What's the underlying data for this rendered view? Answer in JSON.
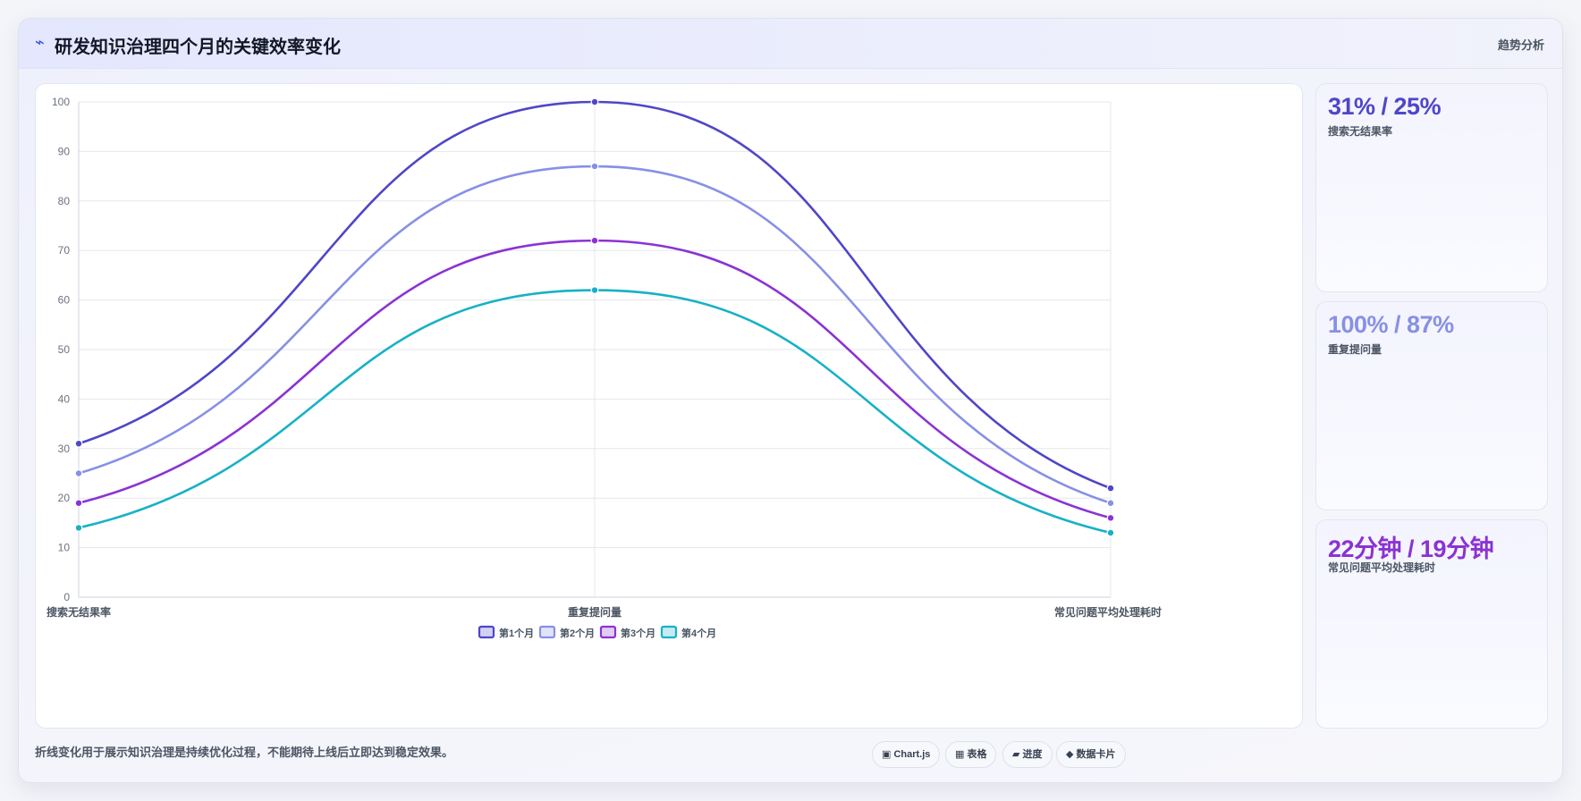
{
  "header": {
    "icon": "lightning-icon",
    "icon_glyph": "⌁",
    "title": "研发知识治理四个月的关键效率变化",
    "right_label": "趋势分析"
  },
  "chart_data": {
    "type": "line",
    "categories": [
      "搜索无结果率",
      "重复提问量",
      "常见问题平均处理耗时"
    ],
    "series": [
      {
        "name": "第1个月",
        "values": [
          31,
          100,
          22
        ],
        "color": "#4f46c8"
      },
      {
        "name": "第2个月",
        "values": [
          25,
          87,
          19
        ],
        "color": "#8790e6"
      },
      {
        "name": "第3个月",
        "values": [
          19,
          72,
          16
        ],
        "color": "#8b32d4"
      },
      {
        "name": "第4个月",
        "values": [
          14,
          62,
          13
        ],
        "color": "#17b1c6"
      }
    ],
    "ylim": [
      0,
      100
    ],
    "yticks": [
      0,
      10,
      20,
      30,
      40,
      50,
      60,
      70,
      80,
      90,
      100
    ],
    "curve": "smooth",
    "grid": true,
    "legend_position": "bottom-center"
  },
  "stats": [
    {
      "value": "31% / 25%",
      "label": "搜索无结果率",
      "color": "#4f46c8"
    },
    {
      "value": "100% / 87%",
      "label": "重复提问量",
      "color": "#8790e6"
    },
    {
      "value": "22分钟 / 19分钟",
      "label": "常见问题平均处理耗时",
      "color": "#8b32d4"
    }
  ],
  "footer": {
    "note": "折线变化用于展示知识治理是持续优化过程，不能期待上线后立即达到稳定效果。",
    "chips": [
      {
        "label": "▣ Chart.js",
        "icon": "chart-icon"
      },
      {
        "label": "▦ 表格",
        "icon": "table-icon"
      },
      {
        "label": "▰ 进度",
        "icon": "progress-icon"
      },
      {
        "label": "◆ 数据卡片",
        "icon": "diamond-icon"
      }
    ]
  }
}
